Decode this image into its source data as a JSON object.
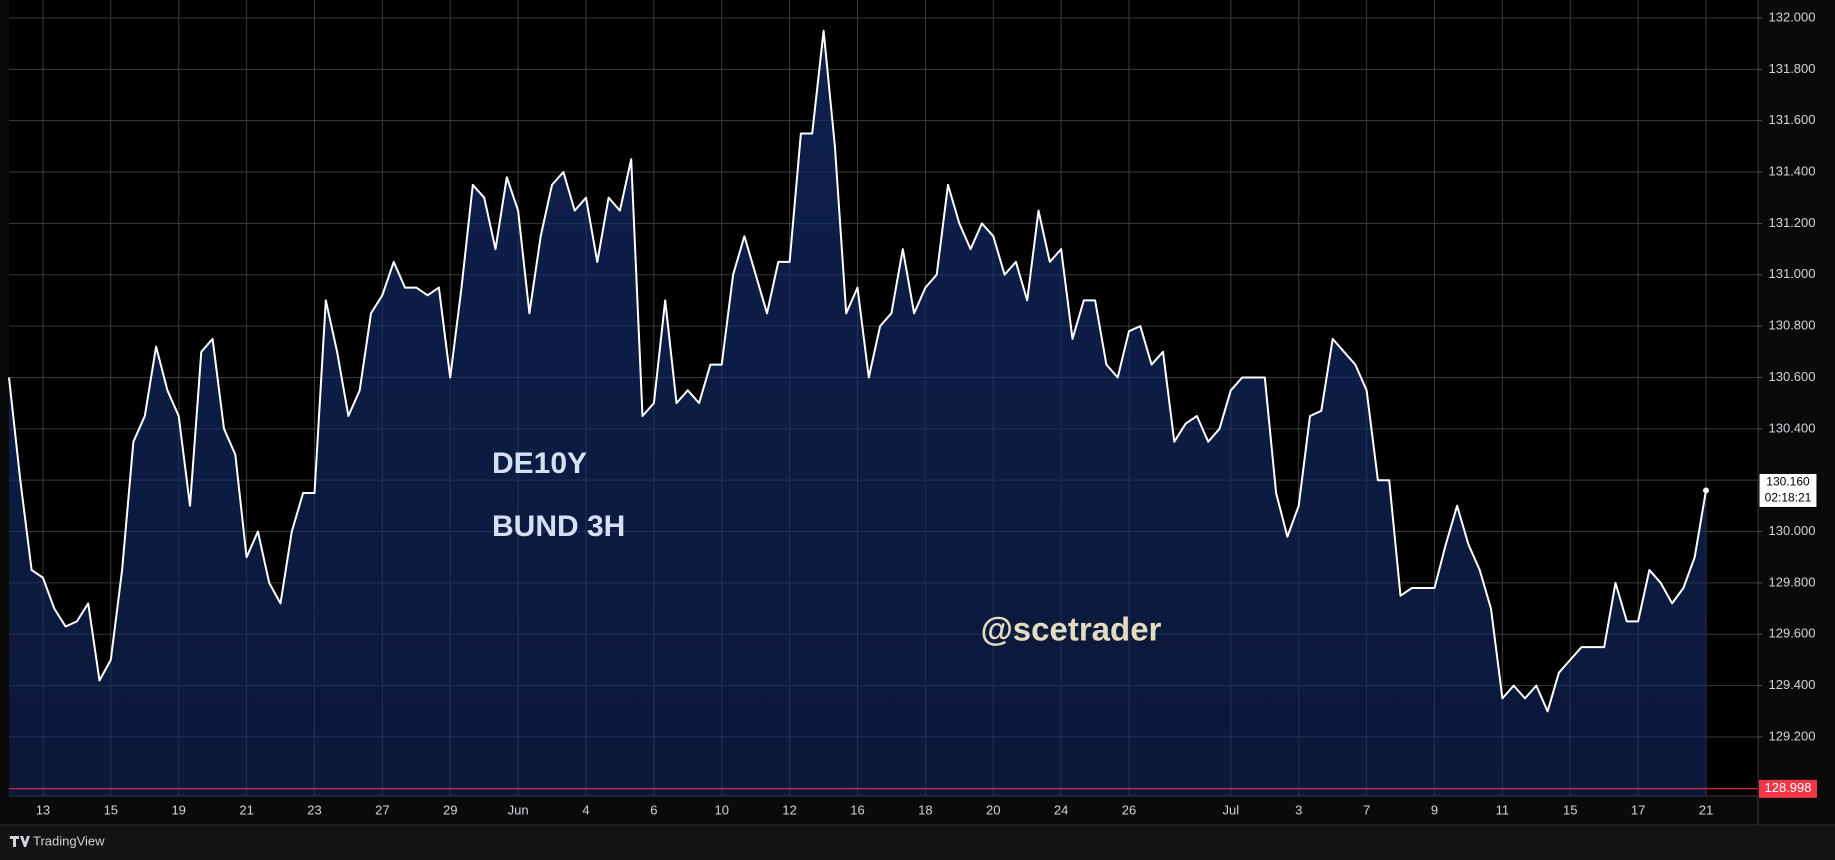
{
  "chart_data": {
    "type": "area",
    "annotations": [
      "DE10Y",
      "BUND 3H"
    ],
    "watermark": "@scetrader",
    "brand": "TradingView",
    "line_color": "#ffffff",
    "fill_color": "#132a66",
    "grid": true,
    "categories": [
      null,
      null,
      null,
      "13",
      null,
      null,
      null,
      null,
      null,
      "15",
      null,
      null,
      null,
      null,
      null,
      "19",
      null,
      null,
      null,
      null,
      null,
      "21",
      null,
      null,
      null,
      null,
      null,
      "23",
      null,
      null,
      null,
      null,
      null,
      "27",
      null,
      null,
      null,
      null,
      null,
      "29",
      null,
      null,
      null,
      null,
      null,
      "Jun",
      null,
      null,
      null,
      null,
      null,
      "4",
      null,
      null,
      null,
      null,
      null,
      "6",
      null,
      null,
      null,
      null,
      null,
      "10",
      null,
      null,
      null,
      null,
      null,
      "12",
      null,
      null,
      null,
      null,
      null,
      "16",
      null,
      null,
      null,
      null,
      null,
      "18",
      null,
      null,
      null,
      null,
      null,
      "20",
      null,
      null,
      null,
      null,
      null,
      "24",
      null,
      null,
      null,
      null,
      null,
      "26",
      null,
      null,
      null,
      null,
      null,
      null,
      null,
      null,
      "Jul",
      null,
      null,
      null,
      null,
      null,
      "3",
      null,
      null,
      null,
      null,
      null,
      "7",
      null,
      null,
      null,
      null,
      null,
      "9",
      null,
      null,
      null,
      null,
      null,
      "11",
      null,
      null,
      null,
      null,
      null,
      "15",
      null,
      null,
      null,
      null,
      null,
      "17",
      null,
      null,
      null,
      null,
      null,
      "21"
    ],
    "values": [
      130.6,
      130.2,
      129.85,
      129.82,
      129.7,
      129.63,
      129.65,
      129.72,
      129.42,
      129.5,
      129.85,
      130.35,
      130.45,
      130.72,
      130.55,
      130.45,
      130.1,
      130.7,
      130.75,
      130.4,
      130.3,
      129.9,
      130.0,
      129.8,
      129.72,
      130.0,
      130.15,
      130.15,
      130.9,
      130.7,
      130.45,
      130.55,
      130.85,
      130.92,
      131.05,
      130.95,
      130.95,
      130.92,
      130.95,
      130.6,
      130.95,
      131.35,
      131.3,
      131.1,
      131.38,
      131.25,
      130.85,
      131.15,
      131.35,
      131.4,
      131.25,
      131.3,
      131.05,
      131.3,
      131.25,
      131.45,
      130.45,
      130.5,
      130.9,
      130.5,
      130.55,
      130.5,
      130.65,
      130.65,
      131.0,
      131.15,
      131.0,
      130.85,
      131.05,
      131.05,
      131.55,
      131.55,
      131.95,
      131.5,
      130.85,
      130.95,
      130.6,
      130.8,
      130.85,
      131.1,
      130.85,
      130.95,
      131.0,
      131.35,
      131.2,
      131.1,
      131.2,
      131.15,
      131.0,
      131.05,
      130.9,
      131.25,
      131.05,
      131.1,
      130.75,
      130.9,
      130.9,
      130.65,
      130.6,
      130.78,
      130.8,
      130.65,
      130.7,
      130.35,
      130.42,
      130.45,
      130.35,
      130.4,
      130.55,
      130.6,
      130.6,
      130.6,
      130.15,
      129.98,
      130.1,
      130.45,
      130.47,
      130.75,
      130.7,
      130.65,
      130.55,
      130.2,
      130.2,
      129.75,
      129.78,
      129.78,
      129.78,
      129.95,
      130.1,
      129.95,
      129.85,
      129.7,
      129.35,
      129.4,
      129.35,
      129.4,
      129.3,
      129.45,
      129.5,
      129.55,
      129.55,
      129.55,
      129.8,
      129.65,
      129.65,
      129.85,
      129.8,
      129.72,
      129.78,
      129.9,
      130.16
    ],
    "ylim": [
      128.97,
      132.07
    ],
    "yticks": [
      {
        "value": 129.2,
        "label": "129.200"
      },
      {
        "value": 129.4,
        "label": "129.400"
      },
      {
        "value": 129.6,
        "label": "129.600"
      },
      {
        "value": 129.8,
        "label": "129.800"
      },
      {
        "value": 130.0,
        "label": "130.000"
      },
      {
        "value": 130.2,
        "label": "130.200"
      },
      {
        "value": 130.4,
        "label": "130.400"
      },
      {
        "value": 130.6,
        "label": "130.600"
      },
      {
        "value": 130.8,
        "label": "130.800"
      },
      {
        "value": 131.0,
        "label": "131.000"
      },
      {
        "value": 131.2,
        "label": "131.200"
      },
      {
        "value": 131.4,
        "label": "131.400"
      },
      {
        "value": 131.6,
        "label": "131.600"
      },
      {
        "value": 131.8,
        "label": "131.800"
      },
      {
        "value": 132.0,
        "label": "132.000"
      }
    ],
    "last_price": {
      "value": 130.16,
      "label": "130.160",
      "countdown": "02:18:21"
    },
    "marker_line": {
      "value": 128.998,
      "label": "128.998",
      "color": "#f23645"
    }
  }
}
